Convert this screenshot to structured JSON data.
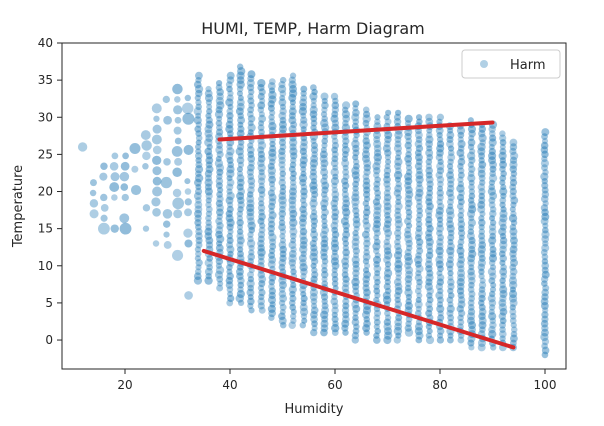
{
  "chart_data": {
    "type": "scatter",
    "title": "HUMI, TEMP, Harm Diagram",
    "xlabel": "Humidity",
    "ylabel": "Temperature",
    "xlim": [
      8,
      104
    ],
    "ylim": [
      -3.9,
      40
    ],
    "xticks": [
      "20",
      "40",
      "60",
      "80",
      "100"
    ],
    "yticks": [
      "0",
      "5",
      "10",
      "15",
      "20",
      "25",
      "30",
      "35",
      "40"
    ],
    "grid": false,
    "legend_position": "top-right",
    "point_color": "#1f77b4",
    "point_alpha": 0.35,
    "series": [
      {
        "name": "Harm",
        "columns": [
          {
            "x": 12,
            "ymin": 26,
            "ymax": 27
          },
          {
            "x": 14,
            "ymin": 17,
            "ymax": 25
          },
          {
            "x": 16,
            "ymin": 15,
            "ymax": 26
          },
          {
            "x": 18,
            "ymin": 15,
            "ymax": 26
          },
          {
            "x": 20,
            "ymin": 15,
            "ymax": 26
          },
          {
            "x": 22,
            "ymin": 16,
            "ymax": 27
          },
          {
            "x": 24,
            "ymin": 15,
            "ymax": 30
          },
          {
            "x": 26,
            "ymin": 13,
            "ymax": 32
          },
          {
            "x": 28,
            "ymin": 10,
            "ymax": 33
          },
          {
            "x": 30,
            "ymin": 10,
            "ymax": 35
          },
          {
            "x": 32,
            "ymin": 6,
            "ymax": 34
          },
          {
            "x": 34,
            "ymin": 8,
            "ymax": 36
          },
          {
            "x": 36,
            "ymin": 8,
            "ymax": 34
          },
          {
            "x": 38,
            "ymin": 7,
            "ymax": 35
          },
          {
            "x": 40,
            "ymin": 5,
            "ymax": 36
          },
          {
            "x": 42,
            "ymin": 5,
            "ymax": 37
          },
          {
            "x": 44,
            "ymin": 4,
            "ymax": 36
          },
          {
            "x": 46,
            "ymin": 4,
            "ymax": 35
          },
          {
            "x": 48,
            "ymin": 3,
            "ymax": 35
          },
          {
            "x": 50,
            "ymin": 2,
            "ymax": 35
          },
          {
            "x": 52,
            "ymin": 2,
            "ymax": 36
          },
          {
            "x": 54,
            "ymin": 2,
            "ymax": 34
          },
          {
            "x": 56,
            "ymin": 1,
            "ymax": 34
          },
          {
            "x": 58,
            "ymin": 1,
            "ymax": 33
          },
          {
            "x": 60,
            "ymin": 1,
            "ymax": 33
          },
          {
            "x": 62,
            "ymin": 1,
            "ymax": 32
          },
          {
            "x": 64,
            "ymin": 0,
            "ymax": 32
          },
          {
            "x": 66,
            "ymin": 1,
            "ymax": 31
          },
          {
            "x": 68,
            "ymin": 0,
            "ymax": 30
          },
          {
            "x": 70,
            "ymin": 0,
            "ymax": 31
          },
          {
            "x": 72,
            "ymin": 0,
            "ymax": 31
          },
          {
            "x": 74,
            "ymin": 1,
            "ymax": 30
          },
          {
            "x": 76,
            "ymin": 0,
            "ymax": 30
          },
          {
            "x": 78,
            "ymin": 0,
            "ymax": 30
          },
          {
            "x": 80,
            "ymin": 0,
            "ymax": 30
          },
          {
            "x": 82,
            "ymin": 0,
            "ymax": 29
          },
          {
            "x": 84,
            "ymin": 0,
            "ymax": 29
          },
          {
            "x": 86,
            "ymin": -1,
            "ymax": 30
          },
          {
            "x": 88,
            "ymin": -1,
            "ymax": 29
          },
          {
            "x": 90,
            "ymin": -1,
            "ymax": 29
          },
          {
            "x": 92,
            "ymin": -1,
            "ymax": 28
          },
          {
            "x": 94,
            "ymin": -1,
            "ymax": 27
          },
          {
            "x": 100,
            "ymin": -2,
            "ymax": 28
          }
        ]
      }
    ],
    "annotations": [
      {
        "type": "line",
        "color": "#d62728",
        "from": [
          38,
          27
        ],
        "to": [
          90,
          29.3
        ]
      },
      {
        "type": "line",
        "color": "#d62728",
        "from": [
          35,
          12
        ],
        "to": [
          94,
          -1
        ]
      }
    ]
  }
}
